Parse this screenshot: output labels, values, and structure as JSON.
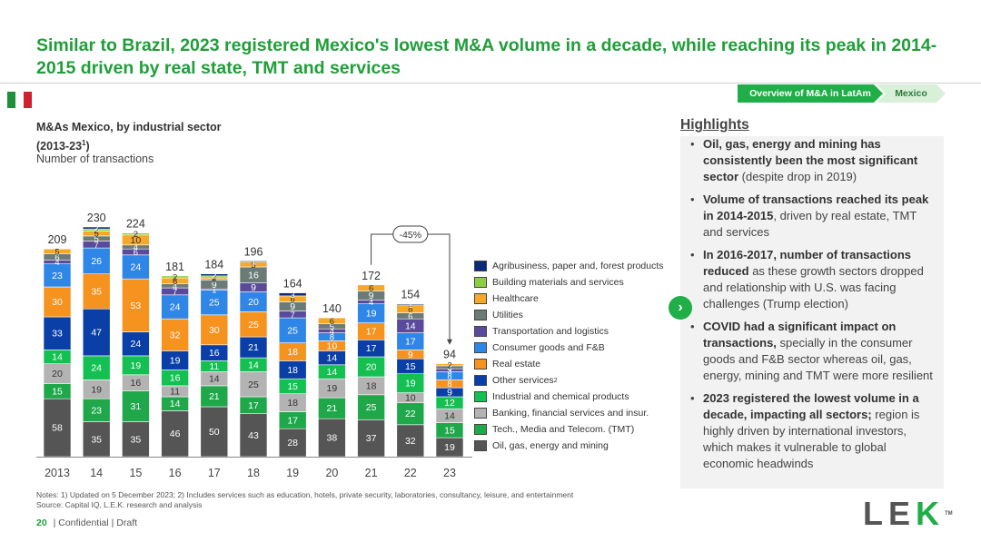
{
  "title": "Similar to Brazil, 2023 registered Mexico's lowest M&A volume in a decade, while reaching its peak in 2014-2015 driven by real state, TMT and services",
  "nav": {
    "section": "Overview of M&A in LatAm",
    "country": "Mexico"
  },
  "chart_header": {
    "line1": "M&As Mexico, by industrial sector",
    "line2_pre": "(2013-23",
    "line2_sup": "1",
    "line2_post": ")",
    "unit": "Number of transactions"
  },
  "chart_data": {
    "type": "bar",
    "stacked": true,
    "title": "M&As Mexico, by industrial sector (2013-23)",
    "ylabel": "Number of transactions",
    "categories": [
      "2013",
      "14",
      "15",
      "16",
      "17",
      "18",
      "19",
      "20",
      "21",
      "22",
      "23"
    ],
    "totals": [
      209,
      230,
      224,
      181,
      184,
      196,
      164,
      140,
      172,
      154,
      94
    ],
    "series": [
      {
        "name": "Oil, gas, energy and mining",
        "color": "#555555",
        "values": [
          58,
          35,
          35,
          46,
          50,
          43,
          28,
          38,
          37,
          32,
          19
        ]
      },
      {
        "name": "Tech., Media and Telecom. (TMT)",
        "color": "#1ea84a",
        "values": [
          15,
          23,
          31,
          14,
          21,
          17,
          17,
          21,
          25,
          22,
          15
        ]
      },
      {
        "name": "Banking, financial services and insur.",
        "color": "#b3b3b3",
        "values": [
          20,
          19,
          16,
          11,
          14,
          25,
          18,
          19,
          18,
          10,
          14
        ]
      },
      {
        "name": "Industrial and chemical products",
        "color": "#13c051",
        "values": [
          14,
          24,
          19,
          16,
          11,
          14,
          15,
          14,
          20,
          19,
          12
        ]
      },
      {
        "name": "Other services",
        "sup": "2",
        "color": "#0a3fa8",
        "values": [
          33,
          47,
          24,
          19,
          16,
          21,
          18,
          14,
          17,
          15,
          9
        ]
      },
      {
        "name": "Real estate",
        "color": "#f6921e",
        "values": [
          30,
          35,
          53,
          32,
          30,
          25,
          18,
          10,
          17,
          9,
          8
        ]
      },
      {
        "name": "Consumer goods and F&B",
        "color": "#2e86e6",
        "values": [
          23,
          26,
          24,
          24,
          25,
          20,
          25,
          8,
          19,
          17,
          8
        ]
      },
      {
        "name": "Transportation and logistics",
        "color": "#5a4a9c",
        "values": [
          4,
          7,
          6,
          7,
          1,
          9,
          7,
          4,
          4,
          14,
          3
        ]
      },
      {
        "name": "Utilities",
        "color": "#6b7b75",
        "values": [
          6,
          5,
          4,
          4,
          9,
          16,
          9,
          5,
          9,
          6,
          3
        ]
      },
      {
        "name": "Healthcare",
        "color": "#f7a826",
        "values": [
          5,
          5,
          10,
          6,
          2,
          5,
          6,
          6,
          6,
          8,
          2
        ]
      },
      {
        "name": "Building materials and services",
        "color": "#8dce3e",
        "values": [
          0,
          2,
          2,
          2,
          2,
          0,
          0,
          0,
          0,
          0,
          0
        ]
      },
      {
        "name": "Agribusiness, paper and, forest products",
        "color": "#0a2a7a",
        "values": [
          0,
          2,
          0,
          0,
          2,
          1,
          3,
          0,
          0,
          1,
          0
        ]
      }
    ],
    "callout": {
      "label": "-45%",
      "from": "21",
      "to": "23"
    }
  },
  "highlights": {
    "title": "Highlights",
    "items": [
      {
        "bold": "Oil, gas, energy and mining has consistently been the most significant sector",
        "text": " (despite drop in 2019)"
      },
      {
        "bold": "Volume of transactions reached its peak in 2014-2015",
        "text": ", driven by real estate, TMT and services"
      },
      {
        "bold": "In 2016-2017, number of transactions reduced",
        "text": " as these growth sectors dropped and relationship with U.S. was facing challenges (Trump election)"
      },
      {
        "bold": "COVID had a significant impact on transactions,",
        "text": " specially in the consumer goods and F&B sector whereas oil, gas, energy, mining and TMT were more resilient"
      },
      {
        "bold": "2023 registered the lowest volume in a decade, impacting all sectors;",
        "text": " region is highly driven by international investors, which makes it vulnerable to global economic headwinds"
      }
    ]
  },
  "notes": {
    "line1": "Notes:    1) Updated on 5 December 2023; 2) Includes services such as education, hotels, private security, laboratories, consultancy, leisure, and entertainment",
    "line2": "Source:  Capital IQ, L.E.K. research and analysis"
  },
  "footer": {
    "page": "20",
    "text": "| Confidential | Draft"
  },
  "logo": {
    "left": "LE",
    "k": "K",
    "tm": "TM"
  },
  "flag_colors": [
    "#1f8f3a",
    "#ffffff",
    "#d11f2f"
  ]
}
